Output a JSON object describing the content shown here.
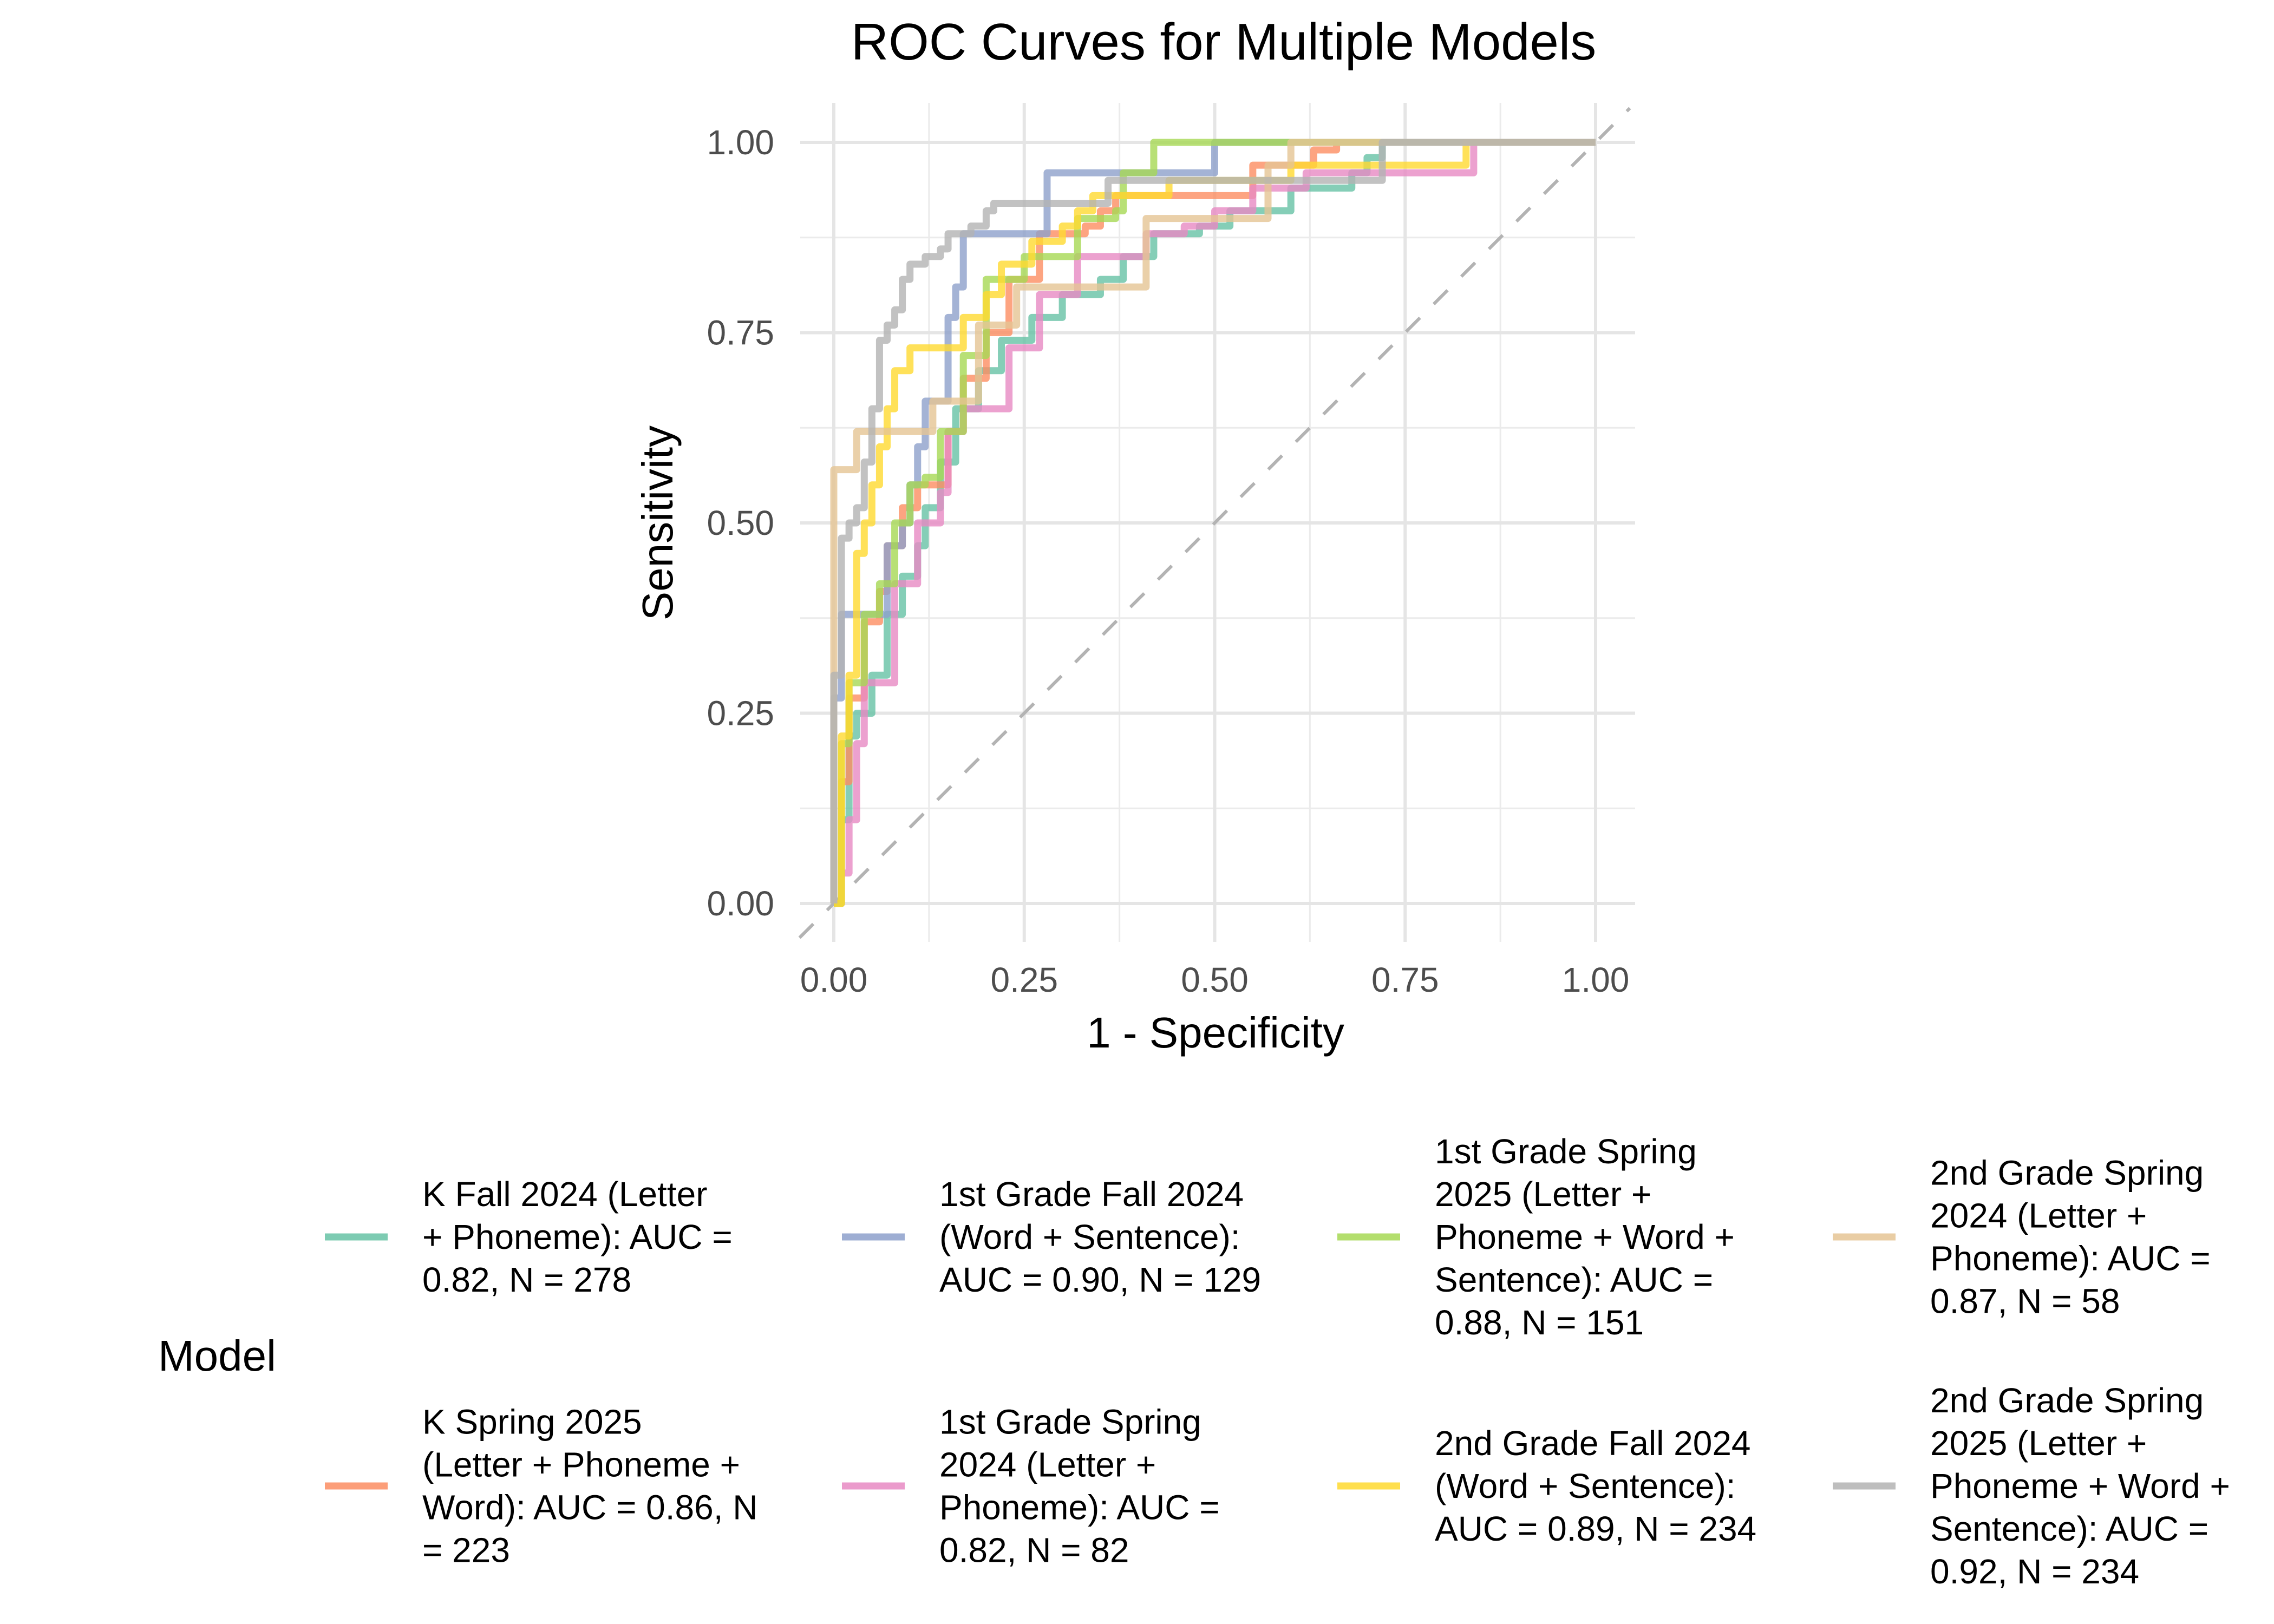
{
  "chart_data": {
    "type": "line",
    "title": "ROC Curves for Multiple Models",
    "xlabel": "1 - Specificity",
    "ylabel": "Sensitivity",
    "xlim": [
      0,
      1
    ],
    "ylim": [
      0,
      1
    ],
    "x_ticks": [
      0,
      0.25,
      0.5,
      0.75,
      1
    ],
    "y_ticks": [
      0,
      0.25,
      0.5,
      0.75,
      1
    ],
    "x_tick_labels": [
      "0.00",
      "0.25",
      "0.50",
      "0.75",
      "1.00"
    ],
    "y_tick_labels": [
      "0.00",
      "0.25",
      "0.50",
      "0.75",
      "1.00"
    ],
    "grid": true,
    "reference_line": {
      "type": "diagonal",
      "style": "dashed",
      "color": "#B3B3B3",
      "from": [
        0,
        0
      ],
      "to": [
        1,
        1
      ]
    },
    "legend": {
      "title": "Model",
      "position": "bottom",
      "layout_rows": 2
    },
    "series": [
      {
        "name": "K Fall 2024 (Letter + Phoneme): AUC = 0.82, N = 278",
        "legend_lines": [
          "K Fall 2024 (Letter",
          "+ Phoneme): AUC =",
          "0.82, N = 278"
        ],
        "auc": 0.82,
        "n": 278,
        "color": "#66C2A5",
        "x": [
          0,
          0.01,
          0.02,
          0.03,
          0.05,
          0.07,
          0.09,
          0.11,
          0.12,
          0.14,
          0.16,
          0.19,
          0.22,
          0.26,
          0.3,
          0.35,
          0.38,
          0.42,
          0.48,
          0.52,
          0.6,
          0.68,
          0.7,
          0.72,
          1
        ],
        "y": [
          0,
          0.11,
          0.22,
          0.25,
          0.3,
          0.38,
          0.43,
          0.47,
          0.52,
          0.58,
          0.65,
          0.7,
          0.74,
          0.77,
          0.8,
          0.82,
          0.85,
          0.88,
          0.89,
          0.91,
          0.94,
          0.96,
          0.98,
          1.0,
          1.0
        ]
      },
      {
        "name": "K Spring 2025 (Letter + Phoneme + Word): AUC = 0.86, N = 223",
        "legend_lines": [
          "K Spring 2025",
          "(Letter + Phoneme +",
          "Word): AUC = 0.86, N",
          "= 223"
        ],
        "auc": 0.86,
        "n": 223,
        "color": "#FC8D62",
        "x": [
          0,
          0.01,
          0.02,
          0.04,
          0.06,
          0.07,
          0.09,
          0.11,
          0.15,
          0.17,
          0.2,
          0.23,
          0.27,
          0.33,
          0.35,
          0.37,
          0.45,
          0.55,
          0.63,
          0.66,
          1
        ],
        "y": [
          0,
          0.16,
          0.27,
          0.37,
          0.41,
          0.47,
          0.52,
          0.55,
          0.62,
          0.69,
          0.75,
          0.82,
          0.88,
          0.89,
          0.91,
          0.93,
          0.93,
          0.97,
          0.99,
          1.0,
          1.0
        ]
      },
      {
        "name": "1st Grade Fall 2024 (Word + Sentence): AUC = 0.90, N = 129",
        "legend_lines": [
          "1st Grade Fall 2024",
          "(Word + Sentence):",
          "AUC = 0.90, N = 129"
        ],
        "auc": 0.9,
        "n": 129,
        "color": "#8DA0CB",
        "x": [
          0,
          0,
          0.01,
          0.06,
          0.07,
          0.09,
          0.1,
          0.11,
          0.12,
          0.15,
          0.15,
          0.16,
          0.17,
          0.27,
          0.28,
          0.5,
          0.5,
          1
        ],
        "y": [
          0,
          0.27,
          0.38,
          0.38,
          0.47,
          0.5,
          0.55,
          0.6,
          0.66,
          0.66,
          0.77,
          0.81,
          0.88,
          0.88,
          0.96,
          0.96,
          1.0,
          1.0
        ]
      },
      {
        "name": "1st Grade Spring 2024 (Letter + Phoneme): AUC = 0.82, N = 82",
        "legend_lines": [
          "1st Grade Spring",
          "2024 (Letter +",
          "Phoneme): AUC =",
          "0.82, N = 82"
        ],
        "auc": 0.82,
        "n": 82,
        "color": "#E78AC3",
        "x": [
          0,
          0.01,
          0.02,
          0.03,
          0.04,
          0.07,
          0.08,
          0.1,
          0.11,
          0.14,
          0.15,
          0.17,
          0.22,
          0.23,
          0.27,
          0.32,
          0.32,
          0.41,
          0.41,
          0.46,
          0.5,
          0.55,
          0.62,
          0.84,
          0.84,
          1
        ],
        "y": [
          0,
          0.04,
          0.11,
          0.21,
          0.29,
          0.29,
          0.42,
          0.42,
          0.5,
          0.54,
          0.62,
          0.65,
          0.65,
          0.73,
          0.8,
          0.8,
          0.85,
          0.85,
          0.88,
          0.89,
          0.91,
          0.94,
          0.96,
          0.96,
          1.0,
          1.0
        ]
      },
      {
        "name": "1st Grade Spring 2025 (Letter + Phoneme + Word + Sentence): AUC = 0.88, N = 151",
        "legend_lines": [
          "1st Grade Spring",
          "2025 (Letter +",
          "Phoneme + Word +",
          "Sentence): AUC =",
          "0.88, N = 151"
        ],
        "auc": 0.88,
        "n": 151,
        "color": "#A6D854",
        "x": [
          0,
          0.01,
          0.02,
          0.04,
          0.06,
          0.08,
          0.1,
          0.12,
          0.14,
          0.17,
          0.2,
          0.23,
          0.25,
          0.32,
          0.32,
          0.37,
          0.38,
          0.42,
          0.42,
          1
        ],
        "y": [
          0,
          0.21,
          0.29,
          0.38,
          0.42,
          0.5,
          0.55,
          0.56,
          0.62,
          0.72,
          0.82,
          0.82,
          0.85,
          0.85,
          0.9,
          0.91,
          0.96,
          0.96,
          1.0,
          1.0
        ]
      },
      {
        "name": "2nd Grade Fall 2024 (Word + Sentence): AUC = 0.89, N = 234",
        "legend_lines": [
          "2nd Grade Fall 2024",
          "(Word + Sentence):",
          "AUC = 0.89, N = 234"
        ],
        "auc": 0.89,
        "n": 234,
        "color": "#FFD92F",
        "x": [
          0,
          0.01,
          0.02,
          0.03,
          0.04,
          0.05,
          0.06,
          0.07,
          0.08,
          0.1,
          0.16,
          0.17,
          0.2,
          0.22,
          0.26,
          0.3,
          0.32,
          0.34,
          0.42,
          0.44,
          0.6,
          0.83,
          0.83,
          1
        ],
        "y": [
          0,
          0.22,
          0.3,
          0.46,
          0.5,
          0.55,
          0.6,
          0.65,
          0.7,
          0.73,
          0.73,
          0.77,
          0.8,
          0.84,
          0.87,
          0.89,
          0.91,
          0.93,
          0.93,
          0.95,
          0.97,
          0.98,
          1.0,
          1.0
        ]
      },
      {
        "name": "2nd Grade Spring 2024 (Letter + Phoneme): AUC = 0.87, N = 58",
        "legend_lines": [
          "2nd Grade Spring",
          "2024 (Letter +",
          "Phoneme): AUC =",
          "0.87, N = 58"
        ],
        "auc": 0.87,
        "n": 58,
        "color": "#E5C494",
        "x": [
          0,
          0,
          0.03,
          0.03,
          0.12,
          0.13,
          0.17,
          0.19,
          0.24,
          0.24,
          0.41,
          0.41,
          0.54,
          0.57,
          0.57,
          0.6,
          1
        ],
        "y": [
          0,
          0.57,
          0.57,
          0.62,
          0.62,
          0.66,
          0.66,
          0.76,
          0.76,
          0.81,
          0.81,
          0.9,
          0.9,
          0.92,
          0.97,
          1.0,
          1.0
        ]
      },
      {
        "name": "2nd Grade Spring 2025 (Letter + Phoneme + Word + Sentence): AUC = 0.92, N = 234",
        "legend_lines": [
          "2nd Grade Spring",
          "2025 (Letter +",
          "Phoneme + Word +",
          "Sentence): AUC =",
          "0.92, N = 234"
        ],
        "auc": 0.92,
        "n": 234,
        "color": "#B3B3B3",
        "x": [
          0,
          0,
          0.01,
          0.01,
          0.02,
          0.03,
          0.04,
          0.05,
          0.06,
          0.07,
          0.08,
          0.09,
          0.1,
          0.12,
          0.14,
          0.15,
          0.18,
          0.2,
          0.21,
          0.35,
          0.36,
          0.5,
          0.72,
          0.72,
          1
        ],
        "y": [
          0,
          0.3,
          0.4,
          0.48,
          0.5,
          0.52,
          0.58,
          0.65,
          0.74,
          0.76,
          0.78,
          0.82,
          0.84,
          0.85,
          0.86,
          0.88,
          0.89,
          0.91,
          0.92,
          0.92,
          0.95,
          0.95,
          0.98,
          1.0,
          1.0
        ]
      }
    ]
  }
}
